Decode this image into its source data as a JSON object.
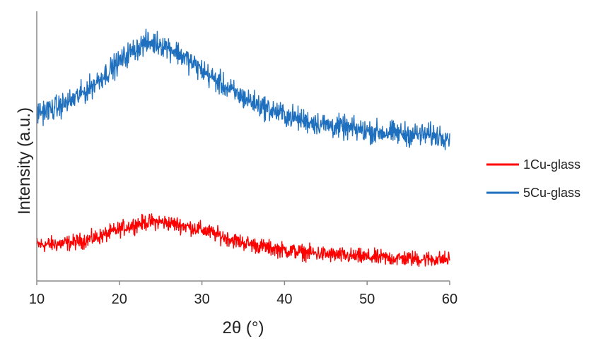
{
  "chart_data": {
    "type": "line",
    "title": "",
    "xlabel": "2θ (°)",
    "ylabel": "Intensity (a.u.)",
    "xlim": [
      10,
      60
    ],
    "x_ticks": [
      "10",
      "20",
      "30",
      "40",
      "50",
      "60"
    ],
    "y_ticks_shown": false,
    "grid": false,
    "legend_position": "right",
    "noise": "high-frequency noise on both patterns",
    "series": [
      {
        "name": "1Cu-glass",
        "color": "#ff0000",
        "x": [
          10,
          12,
          14,
          16,
          18,
          20,
          21,
          22,
          23,
          24,
          25,
          26,
          27,
          28,
          30,
          32,
          34,
          36,
          38,
          40,
          42,
          44,
          46,
          48,
          50,
          52,
          54,
          56,
          58,
          60
        ],
        "y": [
          0.6,
          0.63,
          0.68,
          0.8,
          0.98,
          1.25,
          1.36,
          1.45,
          1.52,
          1.56,
          1.55,
          1.5,
          1.45,
          1.38,
          1.23,
          1.0,
          0.78,
          0.62,
          0.48,
          0.38,
          0.3,
          0.24,
          0.18,
          0.13,
          0.09,
          0.06,
          0.04,
          0.02,
          0.01,
          0.0
        ]
      },
      {
        "name": "5Cu-glass",
        "color": "#1f6fbf",
        "x": [
          10,
          12,
          14,
          16,
          18,
          20,
          21,
          22,
          23,
          24,
          25,
          26,
          27,
          28,
          30,
          32,
          34,
          36,
          38,
          40,
          42,
          44,
          46,
          48,
          50,
          52,
          54,
          56,
          58,
          60
        ],
        "y": [
          6.1,
          6.25,
          6.55,
          7.0,
          7.6,
          8.2,
          8.5,
          8.75,
          8.95,
          9.0,
          8.95,
          8.8,
          8.6,
          8.35,
          7.85,
          7.35,
          6.9,
          6.55,
          6.25,
          6.0,
          5.8,
          5.65,
          5.52,
          5.42,
          5.33,
          5.27,
          5.22,
          5.18,
          5.15,
          5.12
        ]
      }
    ]
  }
}
